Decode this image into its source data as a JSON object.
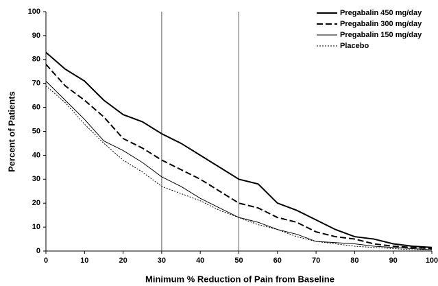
{
  "chart_data": {
    "type": "line",
    "x_label": "Minimum % Reduction of Pain from Baseline",
    "y_label": "Percent of Patients",
    "x": [
      0,
      5,
      10,
      15,
      20,
      25,
      30,
      35,
      40,
      45,
      50,
      55,
      60,
      65,
      70,
      75,
      80,
      85,
      90,
      95,
      100
    ],
    "series": [
      {
        "name": "Pregabalin 450 mg/day",
        "color": "#000000",
        "line_style": "solid",
        "line_width": 2,
        "values": [
          83,
          76,
          71,
          63,
          57,
          54,
          49,
          45,
          40,
          35,
          30,
          28,
          20,
          17,
          13,
          9,
          6,
          5,
          3,
          2,
          1.5
        ]
      },
      {
        "name": "Pregabalin 300 mg/day",
        "color": "#000000",
        "line_style": "dashed",
        "line_width": 2,
        "values": [
          78,
          69,
          63,
          56,
          47,
          43,
          38,
          34,
          30,
          25,
          20,
          18,
          14,
          12,
          8,
          6,
          5,
          3,
          2,
          1.5,
          1
        ]
      },
      {
        "name": "Pregabalin 150 mg/day",
        "color": "#000000",
        "line_style": "solid",
        "line_width": 1,
        "values": [
          71,
          63,
          55,
          46,
          42,
          37,
          31,
          27,
          22,
          18,
          14,
          12,
          9,
          7,
          4,
          3.5,
          3,
          2,
          1.5,
          1,
          0.5
        ]
      },
      {
        "name": "Placebo",
        "color": "#000000",
        "line_style": "dotted",
        "line_width": 1,
        "values": [
          69,
          62,
          53,
          45,
          38,
          33,
          27,
          24,
          21,
          17,
          14,
          11,
          9,
          6,
          4,
          3,
          2,
          1.5,
          1,
          0.5,
          0.5
        ]
      }
    ],
    "reference_lines_x": [
      30,
      50
    ],
    "xlim": [
      0,
      100
    ],
    "xticks": [
      0,
      10,
      20,
      30,
      40,
      50,
      60,
      70,
      80,
      90,
      100
    ],
    "ylim": [
      0,
      100
    ],
    "yticks": [
      0,
      10,
      20,
      30,
      40,
      50,
      60,
      70,
      80,
      90,
      100
    ],
    "legend": "top-right"
  }
}
